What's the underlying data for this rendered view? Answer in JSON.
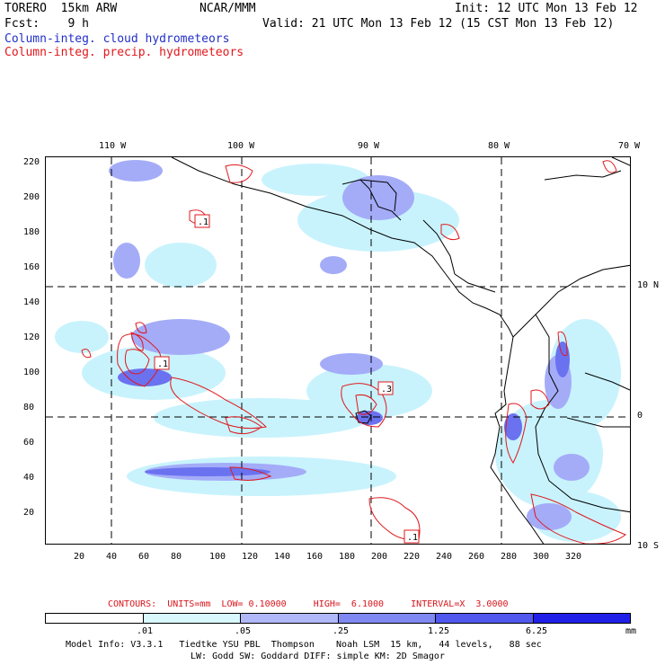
{
  "header": {
    "model": "TORERO  15km ARW",
    "org": "NCAR/MMM",
    "init": "Init: 12 UTC Mon 13 Feb 12",
    "fcst_label": "Fcst:    9 h",
    "valid": "Valid: 21 UTC Mon 13 Feb 12 (15 CST Mon 13 Feb 12)",
    "field_cloud": "Column-integ. cloud hydrometeors",
    "field_precip": "Column-integ. precip. hydrometeors"
  },
  "colors": {
    "cloud_text": "#2230c8",
    "precip_text": "#e0181c",
    "contour": "#e0181c",
    "fill_light": "#b8eefc",
    "fill_mid": "#a0a8f8",
    "fill_dark": "#6870f0",
    "fill_darkest": "#2020e8"
  },
  "map": {
    "top_lon_labels": [
      "110 W",
      "100 W",
      "90 W",
      "80 W",
      "70 W"
    ],
    "right_lat_labels": [
      "10 N",
      "0",
      "10 S"
    ],
    "y_ticks": [
      "220",
      "200",
      "180",
      "160",
      "140",
      "120",
      "100",
      "80",
      "60",
      "40",
      "20"
    ],
    "x_ticks": [
      "20",
      "40",
      "60",
      "80",
      "100",
      "120",
      "140",
      "160",
      "180",
      "200",
      "220",
      "240",
      "260",
      "280",
      "300",
      "320"
    ],
    "contour_labels": [
      ".1",
      ".1",
      ".3",
      ".1"
    ]
  },
  "footer": {
    "contour_info": "CONTOURS:  UNITS=mm  LOW= 0.10000     HIGH=  6.1000     INTERVAL=X  3.0000",
    "legend_values": [
      ".01",
      ".05",
      ".25",
      "1.25",
      "6.25"
    ],
    "legend_unit": "mm",
    "legend_colors": [
      "#ffffff",
      "#d8f8fe",
      "#b0b8fa",
      "#8088f2",
      "#5058ee",
      "#2020e8"
    ],
    "model_info_1": "Model Info: V3.3.1   Tiedtke YSU PBL  Thompson    Noah LSM  15 km,   44 levels,   88 sec",
    "model_info_2": "LW: Godd SW: Goddard DIFF: simple KM: 2D Smagor"
  }
}
